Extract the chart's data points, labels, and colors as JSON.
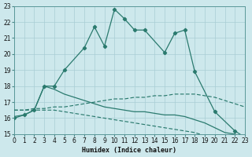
{
  "bg_color": "#cde8ec",
  "grid_color": "#a8cdd4",
  "line_color": "#2a7a6e",
  "xlabel": "Humidex (Indice chaleur)",
  "ylim": [
    15,
    23
  ],
  "xlim": [
    0,
    23
  ],
  "yticks": [
    15,
    16,
    17,
    18,
    19,
    20,
    21,
    22,
    23
  ],
  "xticks": [
    0,
    1,
    2,
    3,
    4,
    5,
    6,
    7,
    8,
    9,
    10,
    11,
    12,
    13,
    14,
    15,
    16,
    17,
    18,
    19,
    20,
    21,
    22,
    23
  ],
  "line_main_x": [
    0,
    1,
    2,
    3,
    4,
    5,
    7,
    8,
    9,
    10,
    11,
    12,
    13,
    15,
    16,
    17,
    18,
    20,
    22,
    23
  ],
  "line_main_y": [
    16.0,
    16.2,
    16.5,
    18.0,
    18.0,
    19.0,
    20.4,
    21.7,
    20.5,
    22.8,
    22.2,
    21.5,
    21.5,
    20.1,
    21.3,
    21.5,
    18.9,
    16.4,
    15.2,
    14.8
  ],
  "line_rise_x": [
    0,
    1,
    2,
    3,
    4,
    5,
    6,
    7,
    8,
    9,
    10,
    11,
    12,
    13,
    14,
    15,
    16,
    17,
    18,
    19,
    20,
    21,
    22,
    23
  ],
  "line_rise_y": [
    16.1,
    16.2,
    16.5,
    18.0,
    17.8,
    17.5,
    17.3,
    17.1,
    16.9,
    16.7,
    16.6,
    16.5,
    16.4,
    16.4,
    16.3,
    16.2,
    16.2,
    16.1,
    15.9,
    15.7,
    15.4,
    15.1,
    15.0,
    14.8
  ],
  "line_flat_x": [
    0,
    1,
    2,
    3,
    4,
    5,
    6,
    7,
    8,
    9,
    10,
    11,
    12,
    13,
    14,
    15,
    16,
    17,
    18,
    19,
    20,
    21,
    22,
    23
  ],
  "line_flat_y": [
    16.5,
    16.5,
    16.6,
    16.6,
    16.7,
    16.7,
    16.8,
    16.9,
    17.0,
    17.1,
    17.2,
    17.2,
    17.3,
    17.3,
    17.4,
    17.4,
    17.5,
    17.5,
    17.5,
    17.4,
    17.3,
    17.1,
    16.9,
    16.7
  ],
  "line_desc_x": [
    0,
    1,
    2,
    3,
    4,
    5,
    6,
    7,
    8,
    9,
    10,
    11,
    12,
    13,
    14,
    15,
    16,
    17,
    18,
    19,
    20,
    21,
    22,
    23
  ],
  "line_desc_y": [
    16.5,
    16.5,
    16.5,
    16.5,
    16.5,
    16.4,
    16.3,
    16.2,
    16.1,
    16.0,
    15.9,
    15.8,
    15.7,
    15.6,
    15.5,
    15.4,
    15.3,
    15.2,
    15.1,
    14.9,
    14.7,
    14.5,
    14.3,
    14.1
  ]
}
